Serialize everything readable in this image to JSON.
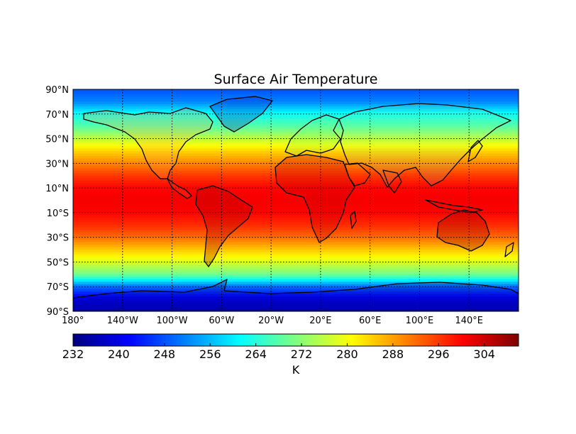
{
  "chart_data": {
    "type": "heatmap",
    "title": "Surface Air Temperature",
    "projection": "equirectangular",
    "lon_range": [
      -180,
      180
    ],
    "lat_range": [
      -90,
      90
    ],
    "lat_tick_labels": [
      "90°N",
      "70°N",
      "50°N",
      "30°N",
      "10°N",
      "10°S",
      "30°S",
      "50°S",
      "70°S",
      "90°S"
    ],
    "lat_ticks": [
      90,
      70,
      50,
      30,
      10,
      -10,
      -30,
      -50,
      -70,
      -90
    ],
    "lon_tick_labels": [
      "180°",
      "140°W",
      "100°W",
      "60°W",
      "20°W",
      "20°E",
      "60°E",
      "100°E",
      "140°E"
    ],
    "lon_ticks": [
      -180,
      -140,
      -100,
      -60,
      -20,
      20,
      60,
      100,
      140
    ],
    "grid": true,
    "grid_style": "dotted",
    "colormap": "jet",
    "colorbar": {
      "label": "K",
      "range": [
        232,
        310
      ],
      "tick_labels": [
        "232",
        "240",
        "248",
        "256",
        "264",
        "272",
        "280",
        "288",
        "296",
        "304"
      ],
      "ticks": [
        232,
        240,
        248,
        256,
        264,
        272,
        280,
        288,
        296,
        304
      ],
      "placement": "bottom"
    },
    "zonal_mean_temperature_K": {
      "lat": [
        90,
        80,
        70,
        60,
        50,
        40,
        30,
        20,
        10,
        0,
        -10,
        -20,
        -30,
        -40,
        -50,
        -60,
        -70,
        -80,
        -90
      ],
      "values": [
        248,
        252,
        262,
        268,
        276,
        284,
        290,
        296,
        300,
        301,
        300,
        297,
        292,
        285,
        278,
        270,
        250,
        240,
        236
      ]
    }
  },
  "colors": {
    "jet_stops": [
      "#00007f",
      "#0000ff",
      "#007fff",
      "#00ffff",
      "#7fff7f",
      "#ffff00",
      "#ff7f00",
      "#ff0000",
      "#7f0000"
    ],
    "coastline": "#000000",
    "grid": "#000000"
  }
}
